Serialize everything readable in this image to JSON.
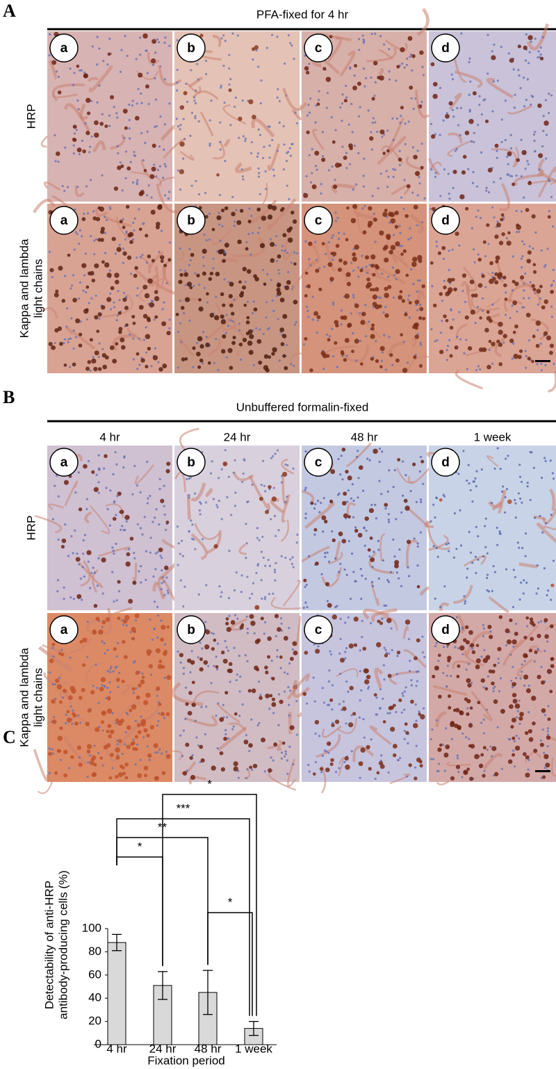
{
  "panel_a": {
    "label": "A",
    "title": "PFA-fixed for 4 hr",
    "rows": [
      [
        "HRP"
      ],
      [
        "Kappa and lambda",
        "light chains"
      ]
    ],
    "panel_letters": [
      "a",
      "b",
      "c",
      "d"
    ]
  },
  "panel_b": {
    "label": "B",
    "title": "Unbuffered formalin-fixed",
    "columns": [
      "4 hr",
      "24 hr",
      "48 hr",
      "1 week"
    ],
    "rows": [
      [
        "HRP"
      ],
      [
        "Kappa and  lambda",
        "light chains"
      ]
    ],
    "panel_letters": [
      "a",
      "b",
      "c",
      "d"
    ]
  },
  "chart_data": {
    "type": "bar",
    "label": "C",
    "ylabel": [
      "Detectability of anti-HRP",
      "antibody-producing cells (%)"
    ],
    "xlabel": "Fixation period",
    "categories": [
      "4 hr",
      "24 hr",
      "48 hr",
      "1 week"
    ],
    "values": [
      88,
      51,
      45,
      14
    ],
    "errors": [
      7,
      12,
      19,
      6
    ],
    "color": "#d9d9d9",
    "ylim": [
      0,
      100
    ],
    "yticks": [
      0,
      20,
      40,
      60,
      80,
      100
    ],
    "significance": [
      {
        "pair": [
          1,
          3
        ],
        "label": "*"
      },
      {
        "pair": [
          0,
          3
        ],
        "label": "***"
      },
      {
        "pair": [
          0,
          2
        ],
        "label": "**"
      },
      {
        "pair": [
          0,
          1
        ],
        "label": "*"
      },
      {
        "pair": [
          2,
          3
        ],
        "label": "*"
      }
    ]
  }
}
